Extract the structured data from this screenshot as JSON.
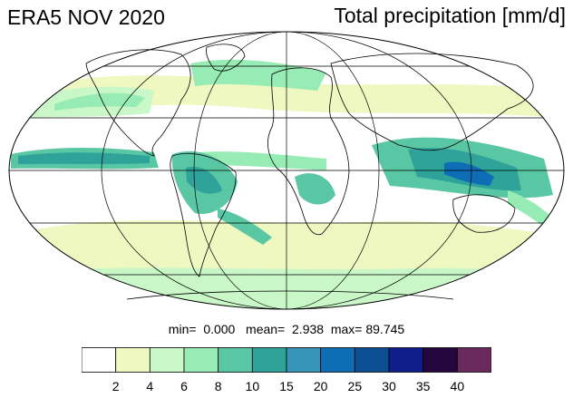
{
  "title_left": "ERA5 NOV 2020",
  "title_right": "Total precipitation [mm/d]",
  "stats": {
    "min_label": "min=",
    "min_value": "0.000",
    "mean_label": "mean=",
    "mean_value": "2.938",
    "max_label": "max=",
    "max_value": "89.745"
  },
  "colorbar": {
    "colors": [
      "#ffffff",
      "#eef8c0",
      "#c9f7c7",
      "#97ebb4",
      "#5ac7a4",
      "#2fa39a",
      "#3596b9",
      "#0e6db5",
      "#0b4f92",
      "#0e1f8c",
      "#25063f",
      "#6a2a5d"
    ],
    "labels": [
      "2",
      "4",
      "6",
      "8",
      "10",
      "15",
      "20",
      "25",
      "30",
      "35",
      "40"
    ]
  },
  "map": {
    "projection": "Mollweide",
    "land_outline_color": "#000000",
    "grid_color": "#000000"
  }
}
